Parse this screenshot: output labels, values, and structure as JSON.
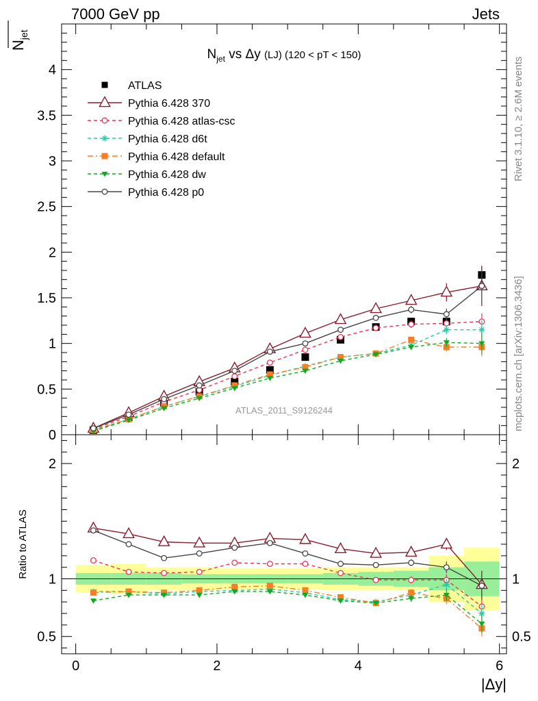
{
  "header": {
    "left": "7000 GeV pp",
    "right": "Jets"
  },
  "side_labels": {
    "rivet": "Rivet 3.1.10, ≥ 2.6M events",
    "mcplots": "mcplots.cern.ch [arXiv:1306.3436]"
  },
  "watermark": "ATLAS_2011_S9126244",
  "chart_data": [
    {
      "type": "line",
      "panel": "main",
      "title_main": "N",
      "title_sub": "jet",
      "title_mid": " vs Δy ",
      "title_small": "(LJ)",
      "title_tail": " (120 < pT < 150)",
      "ylabel_main": "N",
      "ylabel_sub": "jet",
      "xlim": [
        -0.2,
        6.1
      ],
      "ylim": [
        0,
        4.5
      ],
      "yticks": [
        0,
        0.5,
        1,
        1.5,
        2,
        2.5,
        3,
        3.5,
        4
      ],
      "ytick_labels": [
        "0",
        "0.5",
        "1",
        "1.5",
        "2",
        "2.5",
        "3",
        "3.5",
        "4"
      ],
      "legend_position": "top-left",
      "x": [
        0.25,
        0.75,
        1.25,
        1.75,
        2.25,
        2.75,
        3.25,
        3.75,
        4.25,
        4.75,
        5.25,
        5.75
      ],
      "series": [
        {
          "name": "ATLAS",
          "color": "#000000",
          "marker": "square-filled",
          "line": "none",
          "values": [
            0.05,
            0.19,
            0.35,
            0.47,
            0.58,
            0.71,
            0.85,
            1.04,
            1.18,
            1.24,
            1.24,
            1.75
          ],
          "errors": [
            0.01,
            0.01,
            0.01,
            0.01,
            0.01,
            0.01,
            0.01,
            0.02,
            0.02,
            0.03,
            0.06,
            0.1
          ]
        },
        {
          "name": "Pythia 6.428 370",
          "color": "#8b1a2b",
          "marker": "triangle-open",
          "line": "solid",
          "values": [
            0.07,
            0.24,
            0.42,
            0.58,
            0.73,
            0.94,
            1.11,
            1.26,
            1.38,
            1.47,
            1.56,
            1.63
          ],
          "errors": [
            0.01,
            0.01,
            0.01,
            0.01,
            0.02,
            0.02,
            0.02,
            0.03,
            0.04,
            0.05,
            0.1,
            0.22
          ]
        },
        {
          "name": "Pythia 6.428 atlas-csc",
          "color": "#ee3355",
          "marker": "circle-open",
          "line": "dashed",
          "values": [
            0.06,
            0.2,
            0.36,
            0.49,
            0.64,
            0.79,
            0.93,
            1.07,
            1.17,
            1.21,
            1.22,
            1.24
          ],
          "errors": [
            0.01,
            0.01,
            0.01,
            0.01,
            0.01,
            0.02,
            0.02,
            0.02,
            0.03,
            0.04,
            0.06,
            0.09
          ]
        },
        {
          "name": "Pythia 6.428 d6t",
          "color": "#22ccaa",
          "marker": "star",
          "line": "dashed",
          "values": [
            0.05,
            0.17,
            0.31,
            0.42,
            0.53,
            0.65,
            0.75,
            0.85,
            0.89,
            0.98,
            1.15,
            1.15
          ],
          "errors": [
            0.01,
            0.01,
            0.01,
            0.01,
            0.01,
            0.01,
            0.02,
            0.02,
            0.02,
            0.03,
            0.05,
            0.1
          ]
        },
        {
          "name": "Pythia 6.428 default",
          "color": "#f57f25",
          "marker": "square-filled",
          "line": "dashdot",
          "values": [
            0.05,
            0.17,
            0.31,
            0.42,
            0.54,
            0.66,
            0.74,
            0.85,
            0.89,
            1.04,
            0.96,
            0.96
          ],
          "errors": [
            0.01,
            0.01,
            0.01,
            0.01,
            0.01,
            0.01,
            0.02,
            0.02,
            0.02,
            0.03,
            0.05,
            0.1
          ]
        },
        {
          "name": "Pythia 6.428 dw",
          "color": "#11aa22",
          "marker": "triangle-down-filled",
          "line": "dashed",
          "values": [
            0.04,
            0.16,
            0.29,
            0.4,
            0.51,
            0.62,
            0.7,
            0.81,
            0.88,
            0.96,
            1.01,
            1.0
          ],
          "errors": [
            0.01,
            0.01,
            0.01,
            0.01,
            0.01,
            0.01,
            0.02,
            0.02,
            0.02,
            0.03,
            0.05,
            0.12
          ]
        },
        {
          "name": "Pythia 6.428 p0",
          "color": "#444444",
          "marker": "circle-open",
          "line": "solid",
          "values": [
            0.07,
            0.22,
            0.39,
            0.54,
            0.7,
            0.91,
            1.0,
            1.15,
            1.28,
            1.37,
            1.32,
            1.63
          ],
          "errors": [
            0.01,
            0.01,
            0.01,
            0.01,
            0.02,
            0.02,
            0.02,
            0.03,
            0.03,
            0.04,
            0.06,
            0.2
          ]
        }
      ]
    },
    {
      "type": "line",
      "panel": "ratio",
      "ylabel": "Ratio to ATLAS",
      "xlabel": "|Δy|",
      "xlim": [
        -0.2,
        6.1
      ],
      "ylim": [
        0.35,
        2.25
      ],
      "xticks": [
        0,
        2,
        4,
        6
      ],
      "xtick_labels": [
        "0",
        "2",
        "4",
        "6"
      ],
      "yticks": [
        0.5,
        1,
        2
      ],
      "ytick_labels": [
        "0.5",
        "1",
        "2"
      ],
      "x": [
        0.25,
        0.75,
        1.25,
        1.75,
        2.25,
        2.75,
        3.25,
        3.75,
        4.25,
        4.75,
        5.25,
        5.75
      ],
      "band_stat": [
        0.05,
        0.05,
        0.05,
        0.04,
        0.04,
        0.04,
        0.04,
        0.05,
        0.06,
        0.07,
        0.1,
        0.15
      ],
      "band_total": [
        0.12,
        0.13,
        0.1,
        0.1,
        0.09,
        0.09,
        0.09,
        0.1,
        0.1,
        0.1,
        0.2,
        0.27
      ],
      "series": [
        {
          "name": "Pythia 6.428 370",
          "values": [
            1.44,
            1.39,
            1.32,
            1.31,
            1.31,
            1.35,
            1.34,
            1.26,
            1.22,
            1.23,
            1.3,
            0.95
          ],
          "errors": [
            0.02,
            0.02,
            0.02,
            0.02,
            0.02,
            0.02,
            0.02,
            0.02,
            0.02,
            0.03,
            0.05,
            0.12
          ]
        },
        {
          "name": "Pythia 6.428 atlas-csc",
          "values": [
            1.16,
            1.06,
            1.05,
            1.06,
            1.14,
            1.13,
            1.13,
            1.05,
            0.99,
            0.99,
            0.99,
            0.76
          ],
          "errors": [
            0.02,
            0.02,
            0.02,
            0.02,
            0.02,
            0.02,
            0.02,
            0.02,
            0.02,
            0.03,
            0.05,
            0.08
          ]
        },
        {
          "name": "Pythia 6.428 d6t",
          "values": [
            0.89,
            0.89,
            0.87,
            0.89,
            0.9,
            0.91,
            0.88,
            0.82,
            0.8,
            0.86,
            0.95,
            0.7
          ],
          "errors": [
            0.02,
            0.02,
            0.02,
            0.02,
            0.02,
            0.02,
            0.02,
            0.02,
            0.02,
            0.03,
            0.05,
            0.08
          ]
        },
        {
          "name": "Pythia 6.428 default",
          "values": [
            0.88,
            0.89,
            0.88,
            0.9,
            0.93,
            0.94,
            0.9,
            0.84,
            0.79,
            0.88,
            0.83,
            0.57
          ],
          "errors": [
            0.02,
            0.02,
            0.02,
            0.02,
            0.02,
            0.02,
            0.02,
            0.02,
            0.02,
            0.03,
            0.05,
            0.07
          ]
        },
        {
          "name": "Pythia 6.428 dw",
          "values": [
            0.81,
            0.86,
            0.86,
            0.86,
            0.89,
            0.89,
            0.86,
            0.81,
            0.79,
            0.83,
            0.86,
            0.61
          ],
          "errors": [
            0.02,
            0.02,
            0.02,
            0.02,
            0.02,
            0.02,
            0.02,
            0.02,
            0.02,
            0.03,
            0.05,
            0.08
          ]
        },
        {
          "name": "Pythia 6.428 p0",
          "values": [
            1.42,
            1.3,
            1.18,
            1.22,
            1.27,
            1.31,
            1.22,
            1.13,
            1.12,
            1.14,
            1.1,
            0.94
          ],
          "errors": [
            0.02,
            0.02,
            0.02,
            0.02,
            0.02,
            0.02,
            0.02,
            0.02,
            0.02,
            0.03,
            0.05,
            0.12
          ]
        }
      ]
    }
  ]
}
